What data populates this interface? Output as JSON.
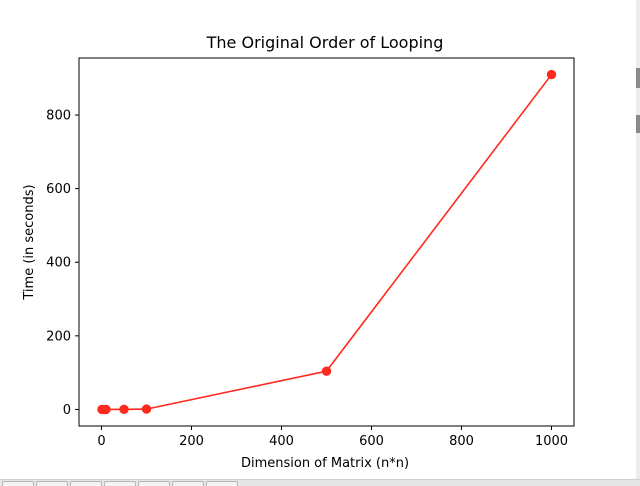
{
  "chart_data": {
    "type": "line",
    "title": "The Original Order of Looping",
    "xlabel": "Dimension of Matrix (n*n)",
    "ylabel": "Time (in seconds)",
    "x": [
      1,
      5,
      10,
      50,
      100,
      500,
      1000
    ],
    "series": [
      {
        "values": [
          0.0,
          0.01,
          0.05,
          0.3,
          0.9,
          104.0,
          910.0
        ],
        "color": "#ff2a1f",
        "marker": "circle"
      }
    ],
    "xlim": [
      -50,
      1050
    ],
    "ylim": [
      -45,
      955
    ],
    "xticks": [
      0,
      200,
      400,
      600,
      800,
      1000
    ],
    "yticks": [
      0,
      200,
      400,
      600,
      800
    ],
    "grid": false,
    "legend": "none"
  },
  "colors": {
    "line": "#ff2a1f",
    "axes": "#000000",
    "background": "#ffffff"
  }
}
